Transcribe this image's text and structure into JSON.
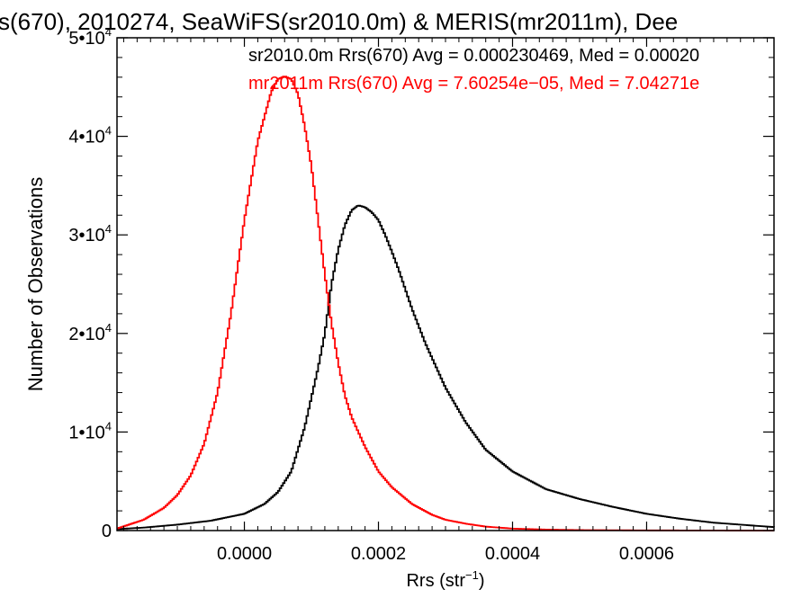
{
  "chart_data": {
    "type": "line",
    "title": "s(670), 2010274, SeaWiFS(sr2010.0m) & MERIS(mr2011m), Dee",
    "xlabel_main": "Rrs (str",
    "xlabel_sup": "−1",
    "xlabel_close": ")",
    "ylabel": "Number of Observations",
    "xlim": [
      -0.00019,
      0.00079
    ],
    "ylim": [
      0,
      50000
    ],
    "x_ticks": [
      {
        "value": 0.0,
        "label": "0.0000"
      },
      {
        "value": 0.0002,
        "label": "0.0002"
      },
      {
        "value": 0.0004,
        "label": "0.0004"
      },
      {
        "value": 0.0006,
        "label": "0.0006"
      }
    ],
    "y_ticks": [
      {
        "value": 0,
        "label": "0",
        "sup": ""
      },
      {
        "value": 10000,
        "label": "1•10",
        "sup": "4"
      },
      {
        "value": 20000,
        "label": "2•10",
        "sup": "4"
      },
      {
        "value": 30000,
        "label": "3•10",
        "sup": "4"
      },
      {
        "value": 40000,
        "label": "4•10",
        "sup": "4"
      },
      {
        "value": 50000,
        "label": "5•10",
        "sup": "4"
      }
    ],
    "annotations": [
      {
        "text": "sr2010.0m Rrs(670) Avg = 0.000230469, Med = 0.00020",
        "color": "#000000"
      },
      {
        "text": "mr2011m Rrs(670) Avg = 7.60254e−05, Med = 7.04271e",
        "color": "#ff0000"
      }
    ],
    "series": [
      {
        "color": "#000000",
        "x": [
          -0.00019,
          -0.00015,
          -0.0001,
          -5e-05,
          0.0,
          3e-05,
          5e-05,
          7e-05,
          9e-05,
          0.00011,
          0.00012,
          0.00013,
          0.00014,
          0.00015,
          0.00016,
          0.00017,
          0.00018,
          0.00019,
          0.0002,
          0.00021,
          0.00022,
          0.00023,
          0.00025,
          0.00027,
          0.0003,
          0.00033,
          0.00036,
          0.0004,
          0.00045,
          0.0005,
          0.00055,
          0.0006,
          0.00065,
          0.0007,
          0.00079
        ],
        "y": [
          150,
          300,
          600,
          1000,
          1700,
          2700,
          3900,
          6000,
          10500,
          16500,
          20000,
          25000,
          28500,
          31000,
          32500,
          33000,
          32800,
          32300,
          31500,
          30000,
          28300,
          26500,
          22500,
          19000,
          14500,
          11000,
          8200,
          6000,
          4200,
          3200,
          2400,
          1700,
          1200,
          800,
          350
        ]
      },
      {
        "color": "#ff0000",
        "x": [
          -0.00019,
          -0.00015,
          -0.00012,
          -0.0001,
          -8e-05,
          -6e-05,
          -4e-05,
          -2e-05,
          0.0,
          2e-05,
          4e-05,
          5e-05,
          6e-05,
          7e-05,
          8e-05,
          9e-05,
          0.0001,
          0.00011,
          0.00012,
          0.00013,
          0.00014,
          0.00015,
          0.00016,
          0.00018,
          0.0002,
          0.00022,
          0.00025,
          0.00028,
          0.0003,
          0.00033,
          0.00036,
          0.0004,
          0.00045,
          0.0005,
          0.0006,
          0.00079
        ],
        "y": [
          200,
          1100,
          2300,
          3600,
          5600,
          8800,
          14000,
          22000,
          31500,
          39500,
          44500,
          45800,
          46100,
          45800,
          44300,
          41000,
          37000,
          31500,
          26000,
          21000,
          17000,
          13700,
          11500,
          8500,
          6000,
          4400,
          2700,
          1600,
          1100,
          700,
          400,
          200,
          100,
          50,
          20,
          0
        ]
      }
    ]
  }
}
